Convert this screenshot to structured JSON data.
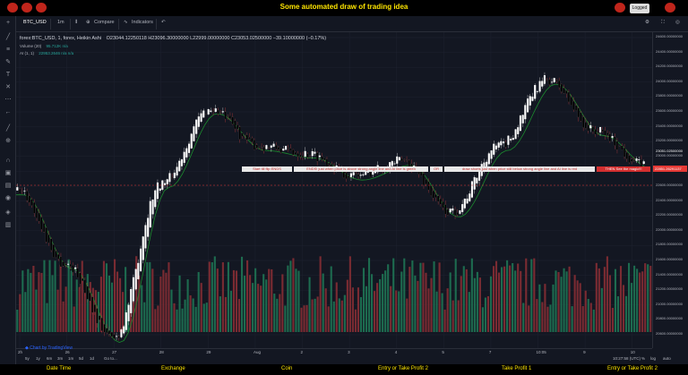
{
  "header": {
    "title": "Some automated draw of trading idea",
    "logged_label": "Logged"
  },
  "toolbar": {
    "symbol": "BTC_USD",
    "interval": "1m",
    "compare_label": "Compare",
    "indicators_label": "Indicators"
  },
  "legend": {
    "symbol_line": "forex:BTC_USD, 1, forex, Heikin Ashi",
    "ohlc": "O23044.12250118  H23096.30000000  L22999.00000000  C23053.02500000  −39.10000000 (−0.17%)"
  },
  "indicators": [
    {
      "label": "Volume (20)",
      "value": "95.712K  n/a"
    },
    {
      "label": "AI (1, 1)",
      "value": "22953.2646  n/a  n/a"
    }
  ],
  "price_axis": {
    "labels": [
      "24600.00000000",
      "24400.00000000",
      "24200.00000000",
      "24000.00000000",
      "23800.00000000",
      "23600.00000000",
      "23400.00000000",
      "23200.00000000",
      "23000.00000000",
      "22800.00000000",
      "22600.00000000",
      "22400.00000000",
      "22200.00000000",
      "22000.00000000",
      "21800.00000000",
      "21600.00000000",
      "21400.00000000",
      "21200.00000000",
      "21000.00000000",
      "20800.00000000",
      "20600.00000000"
    ],
    "highlight_label": "23051.02500000",
    "last_price_label": "22851.26291137"
  },
  "time_axis": {
    "labels": [
      "2h",
      "26",
      "27",
      "28",
      "29",
      "Aug",
      "2",
      "3",
      "4",
      "5",
      "7",
      "10:05",
      "9",
      "10"
    ]
  },
  "bottom": {
    "ranges": [
      "5y",
      "1y",
      "6m",
      "3m",
      "1m",
      "5d",
      "1d"
    ],
    "goto_label": "Go to...",
    "time": "10:27:58 (UTC)",
    "percent_label": "%",
    "log_label": "log",
    "auto_label": "auto"
  },
  "banners": [
    "Start till flip ENDS",
    "ENDS! just when  price is above strong angle line and AI line is green",
    "OR",
    "draw shorts just when price still below strong angle line and AI line is red",
    "THEN See the magic!!!"
  ],
  "watermark": "Chart by TradingView",
  "footer": {
    "labels": [
      "Date Time",
      "Exchange",
      "Coin",
      "Entry or Take Profit 2",
      "Take Profit 1",
      "Entry or Take Profit 2"
    ]
  },
  "colors": {
    "title": "#ffe600",
    "background": "#131722",
    "up_candle": "#ffffff",
    "down_candle": "#000000",
    "line_green": "#1b8a2e",
    "volume_green": "#1d6b4f",
    "volume_red": "#7a2b32",
    "banner_text": "#c62828"
  },
  "chart_data": {
    "type": "candlestick",
    "price_range": [
      20600,
      24600
    ],
    "x_labels": [
      "2h",
      "26",
      "27",
      "28",
      "29",
      "Aug",
      "2",
      "3",
      "4",
      "5",
      "7",
      "10:05",
      "9",
      "10"
    ],
    "close_anchors": [
      {
        "x_label": "2h",
        "price": 22700
      },
      {
        "x_label": "26",
        "price": 21700
      },
      {
        "x_label": "27",
        "price": 20700
      },
      {
        "x_label": "28",
        "price": 22800
      },
      {
        "x_label": "29",
        "price": 23800
      },
      {
        "x_label": "Aug",
        "price": 23300
      },
      {
        "x_label": "2",
        "price": 23200
      },
      {
        "x_label": "3",
        "price": 22900
      },
      {
        "x_label": "4",
        "price": 23100
      },
      {
        "x_label": "5",
        "price": 22400
      },
      {
        "x_label": "7",
        "price": 23300
      },
      {
        "x_label": "10:05",
        "price": 24200
      },
      {
        "x_label": "9",
        "price": 23500
      },
      {
        "x_label": "10",
        "price": 23050
      }
    ]
  }
}
